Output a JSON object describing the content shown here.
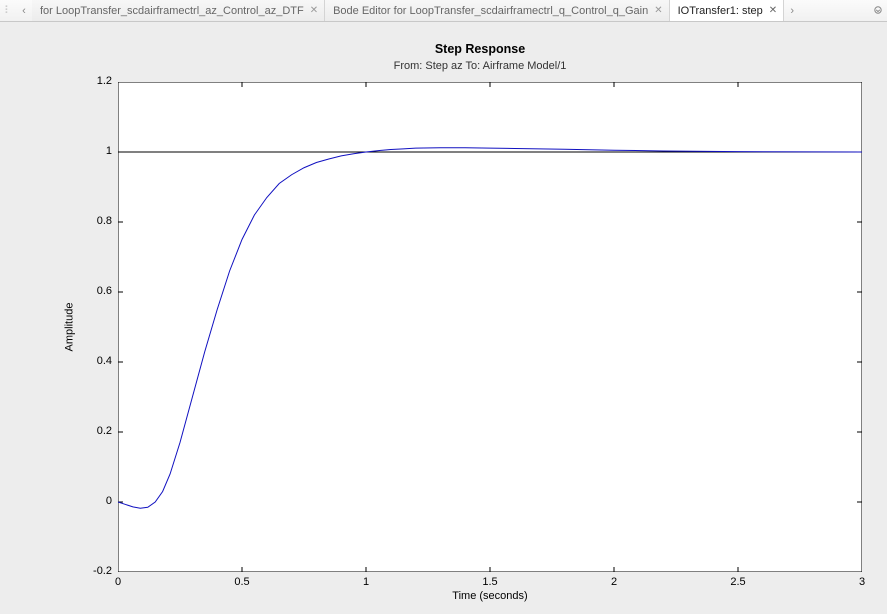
{
  "tabs": {
    "items": [
      {
        "label": "for LoopTransfer_scdairframectrl_az_Control_az_DTF",
        "active": false
      },
      {
        "label": "Bode Editor for LoopTransfer_scdairframectrl_q_Control_q_Gain",
        "active": false
      },
      {
        "label": "IOTransfer1: step",
        "active": true
      }
    ]
  },
  "chart": {
    "type": "line",
    "title": "Step Response",
    "title_fontsize": 12.5,
    "title_fontweight": "bold",
    "subtitle": "From: Step az  To: Airframe Model/1",
    "subtitle_fontsize": 11,
    "xlabel": "Time (seconds)",
    "ylabel": "Amplitude",
    "label_fontsize": 11,
    "xlim": [
      0,
      3
    ],
    "ylim": [
      -0.2,
      1.2
    ],
    "xticks": [
      0,
      0.5,
      1,
      1.5,
      2,
      2.5,
      3
    ],
    "yticks": [
      -0.2,
      0,
      0.2,
      0.4,
      0.6,
      0.8,
      1,
      1.2
    ],
    "xtick_labels": [
      "0",
      "0.5",
      "1",
      "1.5",
      "2",
      "2.5",
      "3"
    ],
    "ytick_labels": [
      "-0.2",
      "0",
      "0.2",
      "0.4",
      "0.6",
      "0.8",
      "1",
      "1.2"
    ],
    "tick_length": 5,
    "tick_fontsize": 11,
    "line_color": "#1010c0",
    "line_width": 1,
    "reference_line": {
      "y": 1,
      "color": "#000000",
      "width": 1
    },
    "background_color": "#ffffff",
    "outer_background": "#ededed",
    "axes_color": "#000000",
    "data": {
      "x": [
        0,
        0.03,
        0.06,
        0.09,
        0.12,
        0.15,
        0.18,
        0.21,
        0.25,
        0.3,
        0.35,
        0.4,
        0.45,
        0.5,
        0.55,
        0.6,
        0.65,
        0.7,
        0.75,
        0.8,
        0.85,
        0.9,
        0.95,
        1.0,
        1.05,
        1.1,
        1.15,
        1.2,
        1.3,
        1.4,
        1.5,
        1.6,
        1.8,
        2.0,
        2.2,
        2.5,
        3.0
      ],
      "y": [
        0,
        -0.007,
        -0.014,
        -0.018,
        -0.015,
        0.0,
        0.03,
        0.08,
        0.17,
        0.3,
        0.43,
        0.55,
        0.66,
        0.75,
        0.82,
        0.87,
        0.91,
        0.935,
        0.955,
        0.97,
        0.98,
        0.989,
        0.995,
        1.0,
        1.004,
        1.007,
        1.009,
        1.011,
        1.012,
        1.012,
        1.011,
        1.01,
        1.008,
        1.005,
        1.003,
        1.001,
        1.0
      ]
    }
  }
}
